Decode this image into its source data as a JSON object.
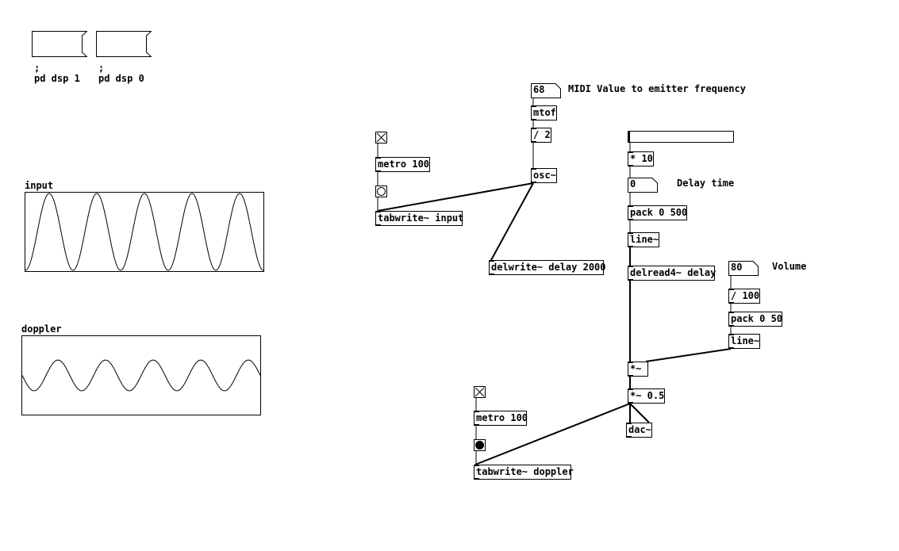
{
  "messages": {
    "dsp_on": ";\npd dsp 1",
    "dsp_off": ";\npd dsp 0"
  },
  "arrays": {
    "input": {
      "label": "input",
      "cycles": 5,
      "amplitude": 1.0,
      "phase": "cosine"
    },
    "doppler": {
      "label": "doppler",
      "cycles": 5,
      "amplitude": 0.4,
      "phase": "sine"
    }
  },
  "numbers": {
    "midi": "68",
    "delay_time": "0",
    "volume": "80"
  },
  "comments": {
    "midi": "MIDI Value to emitter frequency",
    "delay_time": "Delay time",
    "volume": "Volume"
  },
  "objects": {
    "mtof": "mtof",
    "div2": "/ 2",
    "osc": "osc~",
    "metro1": "metro 100",
    "tabwrite_input": "tabwrite~ input",
    "delwrite": "delwrite~ delay 2000",
    "mul10": "* 10",
    "pack500": "pack 0 500",
    "line1": "line~",
    "delread": "delread4~ delay",
    "div100": "/ 100",
    "pack50": "pack 0 50",
    "line2": "line~",
    "mul": "*~",
    "mul05": "*~ 0.5",
    "dac": "dac~",
    "metro2": "metro 100",
    "tabwrite_doppler": "tabwrite~ doppler"
  },
  "gui": {
    "toggle1": {
      "checked": true
    },
    "toggle2": {
      "checked": true
    },
    "bang1": {
      "active": false
    },
    "bang2": {
      "active": true
    },
    "delay_slider": {
      "value": 0
    }
  }
}
